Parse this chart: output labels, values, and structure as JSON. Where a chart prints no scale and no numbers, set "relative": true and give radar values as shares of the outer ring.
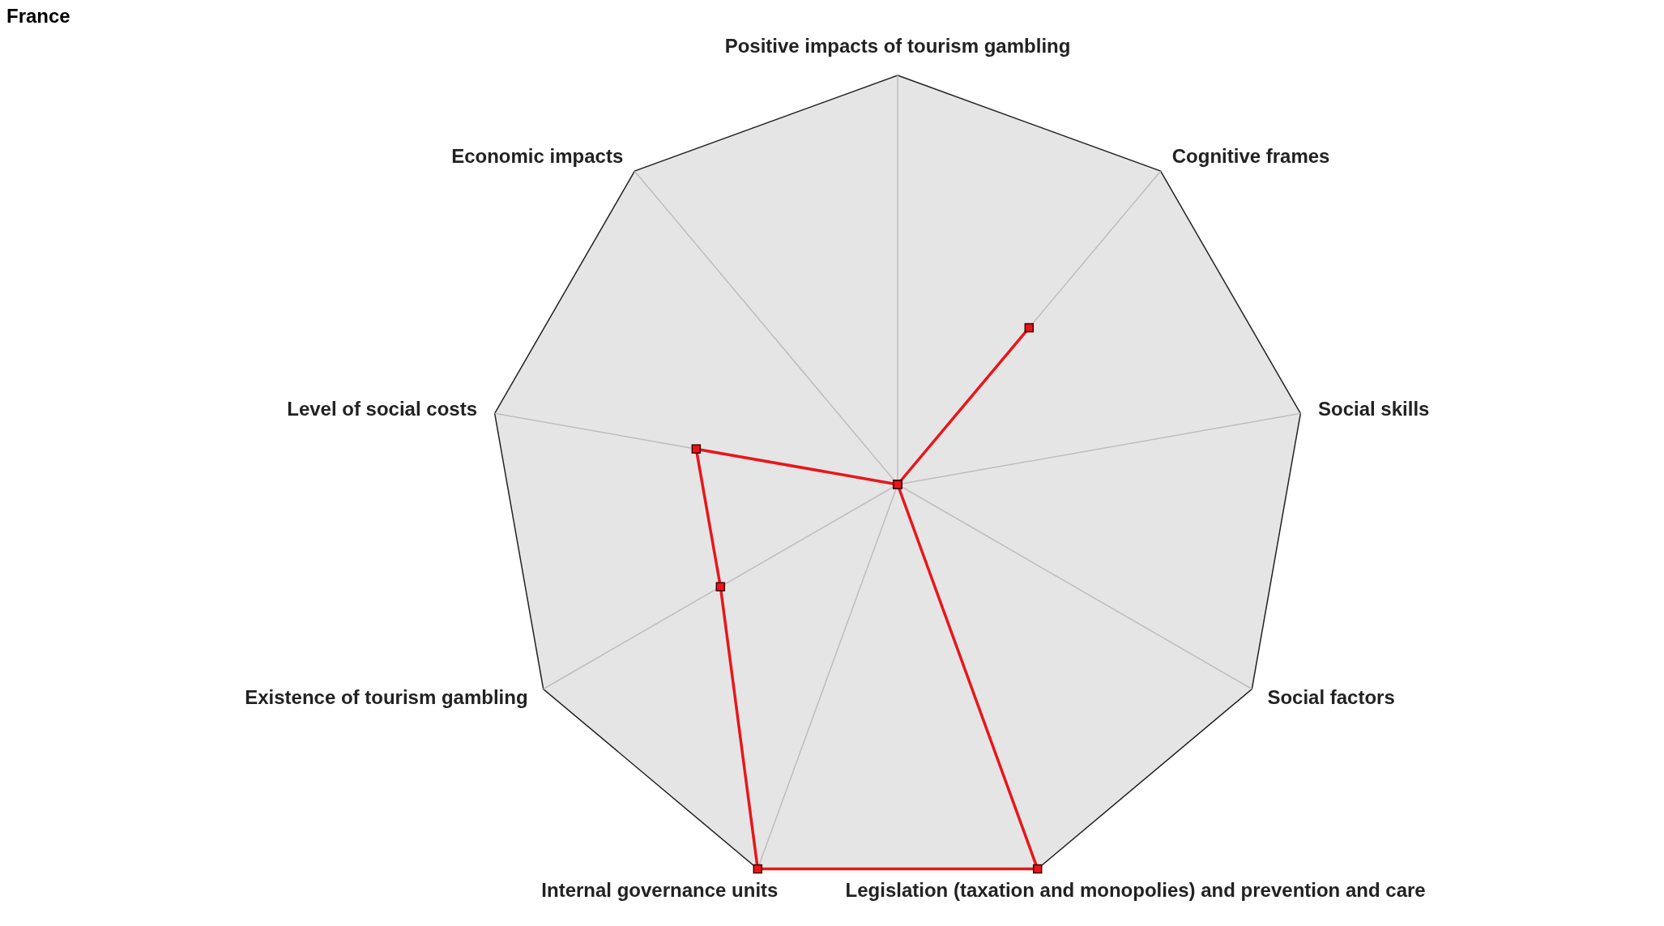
{
  "chart_data": {
    "type": "radar",
    "title": "France",
    "relative": true,
    "categories": [
      "Positive impacts of tourism gambling",
      "Cognitive frames",
      "Social skills",
      "Social factors",
      "Legislation (taxation and monopolies) and prevention and care",
      "Internal governance units",
      "Existence of tourism gambling",
      "Level of social costs",
      "Economic impacts"
    ],
    "series": [
      {
        "color": "#e8161b",
        "values": [
          0,
          0.5,
          0,
          0,
          1,
          1,
          0.5,
          0.5,
          0
        ]
      }
    ],
    "marker": "square",
    "line_style": "solid",
    "grid": true,
    "legend": false
  }
}
